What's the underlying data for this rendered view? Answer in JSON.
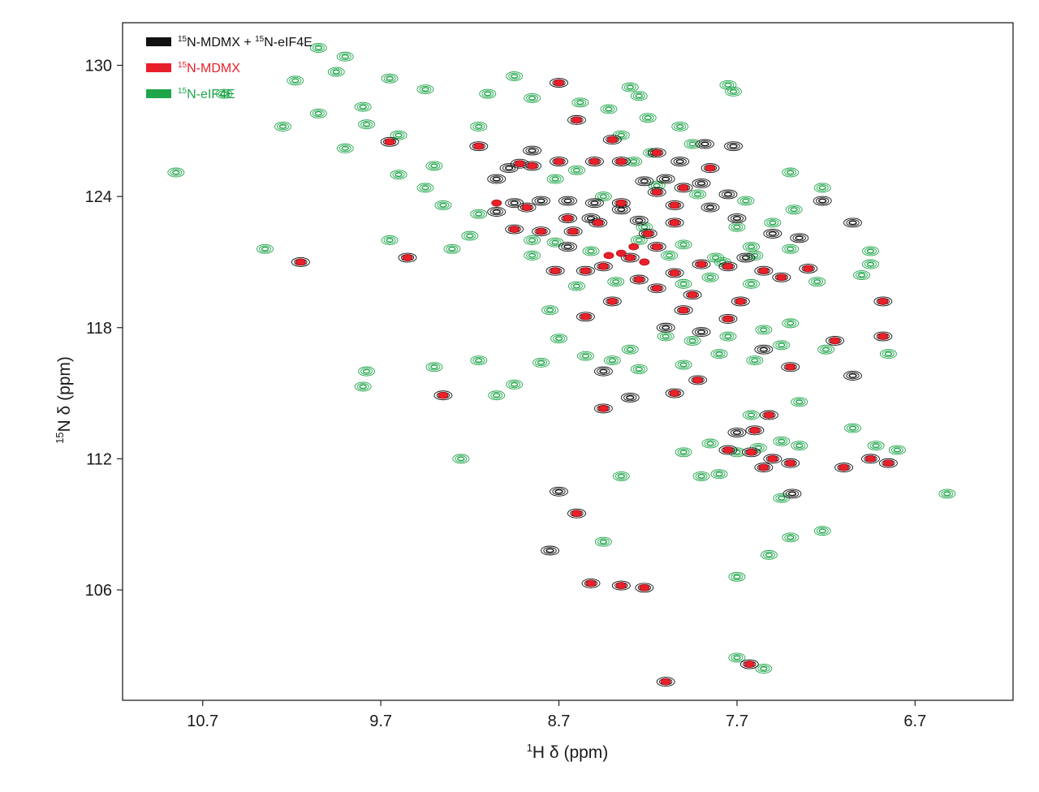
{
  "chart_data": {
    "type": "scatter",
    "xlabel": {
      "sup": "1",
      "text": "H δ (ppm)"
    },
    "ylabel": {
      "sup": "15",
      "text": "N δ (ppm)"
    },
    "xlim": [
      11.15,
      6.15
    ],
    "ylim": [
      131.95,
      100.95
    ],
    "x_ticks": [
      "10.7",
      "9.7",
      "8.7",
      "7.7",
      "6.7"
    ],
    "y_ticks": [
      "106",
      "112",
      "118",
      "124",
      "130"
    ],
    "grid": false,
    "legend_position": "top-left",
    "legend": [
      {
        "sup_a": "15",
        "text_a": "N-MDMX + ",
        "sup_b": "15",
        "text_b": "N-eIF4E",
        "color": "#111111",
        "text_color": "#111111"
      },
      {
        "sup_a": "15",
        "text_a": "N-MDMX",
        "sup_b": "",
        "text_b": "",
        "color": "#e8202a",
        "text_color": "#e8202a"
      },
      {
        "sup_a": "15",
        "text_a": "N-eIF4E",
        "sup_b": "",
        "text_b": "",
        "color": "#1fa54a",
        "text_color": "#1fa54a"
      }
    ],
    "series": [
      {
        "role": "complex",
        "color": "#111111",
        "points": [
          [
            8.1,
            101.8
          ],
          [
            7.63,
            102.6
          ],
          [
            8.52,
            106.3
          ],
          [
            8.35,
            106.2
          ],
          [
            8.22,
            106.1
          ],
          [
            8.75,
            107.8
          ],
          [
            8.6,
            109.5
          ],
          [
            8.7,
            110.5
          ],
          [
            7.39,
            110.4
          ],
          [
            7.55,
            111.6
          ],
          [
            7.75,
            112.4
          ],
          [
            7.62,
            112.3
          ],
          [
            7.5,
            112.0
          ],
          [
            7.4,
            111.8
          ],
          [
            7.1,
            111.6
          ],
          [
            6.95,
            112.0
          ],
          [
            6.85,
            111.8
          ],
          [
            7.6,
            113.3
          ],
          [
            7.52,
            114.0
          ],
          [
            7.7,
            113.2
          ],
          [
            8.45,
            114.3
          ],
          [
            8.3,
            114.8
          ],
          [
            8.05,
            115.0
          ],
          [
            7.92,
            115.6
          ],
          [
            7.05,
            115.8
          ],
          [
            9.35,
            114.9
          ],
          [
            8.45,
            116.0
          ],
          [
            7.4,
            116.2
          ],
          [
            7.15,
            117.4
          ],
          [
            6.88,
            117.6
          ],
          [
            7.55,
            117.0
          ],
          [
            7.9,
            117.8
          ],
          [
            8.1,
            118.0
          ],
          [
            7.75,
            118.4
          ],
          [
            8.55,
            118.5
          ],
          [
            8.4,
            119.2
          ],
          [
            8.15,
            119.8
          ],
          [
            8.25,
            120.2
          ],
          [
            8.05,
            120.5
          ],
          [
            7.9,
            120.9
          ],
          [
            7.75,
            120.8
          ],
          [
            7.55,
            120.6
          ],
          [
            7.45,
            120.3
          ],
          [
            7.3,
            120.7
          ],
          [
            8.45,
            120.8
          ],
          [
            8.55,
            120.6
          ],
          [
            8.72,
            120.6
          ],
          [
            9.55,
            121.2
          ],
          [
            10.15,
            121.0
          ],
          [
            8.65,
            121.7
          ],
          [
            8.3,
            121.2
          ],
          [
            8.15,
            121.7
          ],
          [
            8.95,
            122.5
          ],
          [
            8.8,
            122.4
          ],
          [
            8.62,
            122.4
          ],
          [
            8.48,
            122.8
          ],
          [
            8.2,
            122.3
          ],
          [
            8.05,
            122.8
          ],
          [
            7.35,
            122.1
          ],
          [
            7.5,
            122.3
          ],
          [
            8.65,
            123.0
          ],
          [
            8.52,
            123.0
          ],
          [
            8.35,
            123.4
          ],
          [
            8.25,
            122.9
          ],
          [
            8.88,
            123.5
          ],
          [
            8.05,
            123.6
          ],
          [
            7.85,
            123.5
          ],
          [
            7.7,
            123.0
          ],
          [
            9.05,
            123.3
          ],
          [
            8.95,
            123.7
          ],
          [
            8.8,
            123.8
          ],
          [
            8.65,
            123.8
          ],
          [
            8.5,
            123.7
          ],
          [
            8.35,
            123.7
          ],
          [
            8.15,
            124.2
          ],
          [
            8.0,
            124.4
          ],
          [
            7.9,
            124.6
          ],
          [
            7.75,
            124.1
          ],
          [
            8.1,
            124.8
          ],
          [
            8.22,
            124.7
          ],
          [
            7.85,
            125.3
          ],
          [
            8.02,
            125.6
          ],
          [
            8.35,
            125.6
          ],
          [
            8.5,
            125.6
          ],
          [
            8.7,
            125.6
          ],
          [
            8.85,
            125.4
          ],
          [
            8.98,
            125.3
          ],
          [
            9.05,
            124.8
          ],
          [
            8.85,
            126.1
          ],
          [
            8.4,
            126.6
          ],
          [
            8.15,
            126.0
          ],
          [
            7.88,
            126.4
          ],
          [
            7.72,
            126.3
          ],
          [
            8.6,
            127.5
          ],
          [
            8.7,
            129.2
          ],
          [
            9.15,
            126.3
          ],
          [
            9.65,
            126.5
          ],
          [
            8.92,
            125.5
          ],
          [
            7.65,
            121.2
          ],
          [
            7.22,
            123.8
          ],
          [
            7.05,
            122.8
          ],
          [
            6.88,
            119.2
          ],
          [
            7.68,
            119.2
          ],
          [
            7.95,
            119.5
          ],
          [
            8.0,
            118.8
          ]
        ]
      },
      {
        "role": "MDMX",
        "color": "#e8202a",
        "points": [
          [
            8.1,
            101.8
          ],
          [
            7.63,
            102.6
          ],
          [
            8.52,
            106.3
          ],
          [
            8.35,
            106.2
          ],
          [
            8.22,
            106.1
          ],
          [
            8.6,
            109.5
          ],
          [
            7.55,
            111.6
          ],
          [
            7.75,
            112.4
          ],
          [
            7.62,
            112.3
          ],
          [
            7.5,
            112.0
          ],
          [
            7.4,
            111.8
          ],
          [
            7.1,
            111.6
          ],
          [
            6.95,
            112.0
          ],
          [
            6.85,
            111.8
          ],
          [
            7.6,
            113.3
          ],
          [
            7.52,
            114.0
          ],
          [
            8.45,
            114.3
          ],
          [
            8.05,
            115.0
          ],
          [
            7.92,
            115.6
          ],
          [
            9.35,
            114.9
          ],
          [
            7.4,
            116.2
          ],
          [
            7.15,
            117.4
          ],
          [
            6.88,
            117.6
          ],
          [
            7.75,
            118.4
          ],
          [
            8.55,
            118.5
          ],
          [
            8.4,
            119.2
          ],
          [
            8.15,
            119.8
          ],
          [
            8.25,
            120.2
          ],
          [
            8.05,
            120.5
          ],
          [
            7.9,
            120.9
          ],
          [
            7.75,
            120.8
          ],
          [
            7.55,
            120.6
          ],
          [
            8.45,
            120.8
          ],
          [
            8.55,
            120.6
          ],
          [
            8.72,
            120.6
          ],
          [
            8.3,
            121.2
          ],
          [
            8.15,
            121.7
          ],
          [
            8.35,
            121.4
          ],
          [
            8.22,
            121.0
          ],
          [
            8.42,
            121.3
          ],
          [
            8.28,
            121.7
          ],
          [
            8.95,
            122.5
          ],
          [
            8.8,
            122.4
          ],
          [
            8.62,
            122.4
          ],
          [
            8.48,
            122.8
          ],
          [
            8.2,
            122.3
          ],
          [
            8.05,
            122.8
          ],
          [
            8.88,
            123.5
          ],
          [
            8.05,
            123.6
          ],
          [
            8.65,
            123.0
          ],
          [
            8.35,
            123.7
          ],
          [
            8.0,
            124.4
          ],
          [
            8.15,
            124.2
          ],
          [
            7.85,
            125.3
          ],
          [
            8.35,
            125.6
          ],
          [
            8.5,
            125.6
          ],
          [
            8.7,
            125.6
          ],
          [
            8.85,
            125.4
          ],
          [
            8.4,
            126.6
          ],
          [
            8.15,
            126.0
          ],
          [
            8.6,
            127.5
          ],
          [
            8.7,
            129.2
          ],
          [
            9.15,
            126.3
          ],
          [
            9.65,
            126.5
          ],
          [
            9.55,
            121.2
          ],
          [
            10.15,
            121.0
          ],
          [
            9.05,
            123.7
          ],
          [
            8.92,
            125.5
          ],
          [
            6.88,
            119.2
          ],
          [
            7.68,
            119.2
          ],
          [
            7.95,
            119.5
          ],
          [
            8.0,
            118.8
          ],
          [
            7.3,
            120.7
          ],
          [
            7.45,
            120.3
          ]
        ]
      },
      {
        "role": "eIF4E",
        "color": "#1fa54a",
        "points": [
          [
            7.7,
            102.9
          ],
          [
            7.55,
            102.4
          ],
          [
            7.7,
            106.6
          ],
          [
            7.52,
            107.6
          ],
          [
            7.4,
            108.4
          ],
          [
            7.22,
            108.7
          ],
          [
            7.45,
            110.2
          ],
          [
            6.52,
            110.4
          ],
          [
            8.45,
            108.2
          ],
          [
            9.25,
            112.0
          ],
          [
            8.35,
            111.2
          ],
          [
            7.9,
            111.2
          ],
          [
            7.8,
            111.3
          ],
          [
            7.7,
            112.3
          ],
          [
            7.58,
            112.5
          ],
          [
            7.45,
            112.8
          ],
          [
            7.35,
            112.6
          ],
          [
            8.0,
            112.3
          ],
          [
            7.85,
            112.7
          ],
          [
            6.92,
            112.6
          ],
          [
            6.8,
            112.4
          ],
          [
            7.05,
            113.4
          ],
          [
            7.62,
            114.0
          ],
          [
            7.35,
            114.6
          ],
          [
            9.05,
            114.9
          ],
          [
            8.95,
            115.4
          ],
          [
            9.8,
            115.3
          ],
          [
            9.78,
            116.0
          ],
          [
            9.15,
            116.5
          ],
          [
            8.8,
            116.4
          ],
          [
            8.4,
            116.5
          ],
          [
            8.55,
            116.7
          ],
          [
            8.25,
            116.1
          ],
          [
            8.0,
            116.3
          ],
          [
            7.8,
            116.8
          ],
          [
            7.6,
            116.5
          ],
          [
            8.7,
            117.5
          ],
          [
            7.95,
            117.4
          ],
          [
            7.75,
            117.6
          ],
          [
            7.55,
            117.9
          ],
          [
            7.4,
            118.2
          ],
          [
            8.1,
            117.6
          ],
          [
            8.3,
            117.0
          ],
          [
            9.4,
            116.2
          ],
          [
            8.75,
            118.8
          ],
          [
            8.6,
            119.9
          ],
          [
            8.38,
            120.1
          ],
          [
            8.0,
            120.0
          ],
          [
            7.85,
            120.3
          ],
          [
            7.62,
            120.0
          ],
          [
            7.25,
            120.1
          ],
          [
            7.0,
            120.4
          ],
          [
            6.95,
            121.5
          ],
          [
            7.4,
            121.6
          ],
          [
            7.6,
            121.3
          ],
          [
            8.85,
            121.3
          ],
          [
            8.72,
            121.9
          ],
          [
            8.52,
            121.5
          ],
          [
            8.25,
            122.0
          ],
          [
            8.0,
            121.8
          ],
          [
            7.82,
            121.2
          ],
          [
            9.65,
            122.0
          ],
          [
            9.2,
            122.2
          ],
          [
            9.3,
            121.6
          ],
          [
            8.85,
            122.0
          ],
          [
            7.7,
            122.6
          ],
          [
            7.5,
            122.8
          ],
          [
            7.38,
            123.4
          ],
          [
            7.65,
            123.8
          ],
          [
            9.15,
            123.2
          ],
          [
            9.35,
            123.6
          ],
          [
            8.15,
            124.5
          ],
          [
            7.92,
            124.1
          ],
          [
            8.72,
            124.8
          ],
          [
            8.6,
            125.2
          ],
          [
            9.45,
            124.4
          ],
          [
            8.28,
            125.6
          ],
          [
            8.18,
            126.0
          ],
          [
            8.02,
            127.2
          ],
          [
            7.95,
            126.4
          ],
          [
            8.35,
            126.8
          ],
          [
            8.2,
            127.6
          ],
          [
            9.4,
            125.4
          ],
          [
            9.6,
            125.0
          ],
          [
            9.15,
            127.2
          ],
          [
            9.78,
            127.3
          ],
          [
            9.8,
            128.1
          ],
          [
            9.45,
            128.9
          ],
          [
            9.1,
            128.7
          ],
          [
            8.85,
            128.5
          ],
          [
            8.58,
            128.3
          ],
          [
            8.25,
            128.6
          ],
          [
            9.9,
            130.4
          ],
          [
            9.95,
            129.7
          ],
          [
            10.25,
            127.2
          ],
          [
            10.05,
            127.8
          ],
          [
            10.18,
            129.3
          ],
          [
            10.58,
            128.7
          ],
          [
            10.05,
            130.8
          ],
          [
            9.65,
            129.4
          ],
          [
            9.6,
            126.8
          ],
          [
            9.9,
            126.2
          ],
          [
            10.35,
            121.6
          ],
          [
            10.85,
            125.1
          ],
          [
            8.95,
            129.5
          ],
          [
            7.78,
            121.0
          ],
          [
            7.62,
            121.7
          ],
          [
            7.75,
            129.1
          ],
          [
            8.3,
            129.0
          ],
          [
            8.42,
            128.0
          ],
          [
            7.72,
            128.8
          ],
          [
            6.95,
            120.9
          ],
          [
            7.4,
            125.1
          ],
          [
            8.45,
            124.0
          ],
          [
            7.22,
            124.4
          ],
          [
            8.08,
            121.3
          ],
          [
            8.22,
            122.6
          ],
          [
            7.45,
            117.2
          ],
          [
            7.2,
            117.0
          ],
          [
            6.85,
            116.8
          ]
        ]
      }
    ]
  }
}
